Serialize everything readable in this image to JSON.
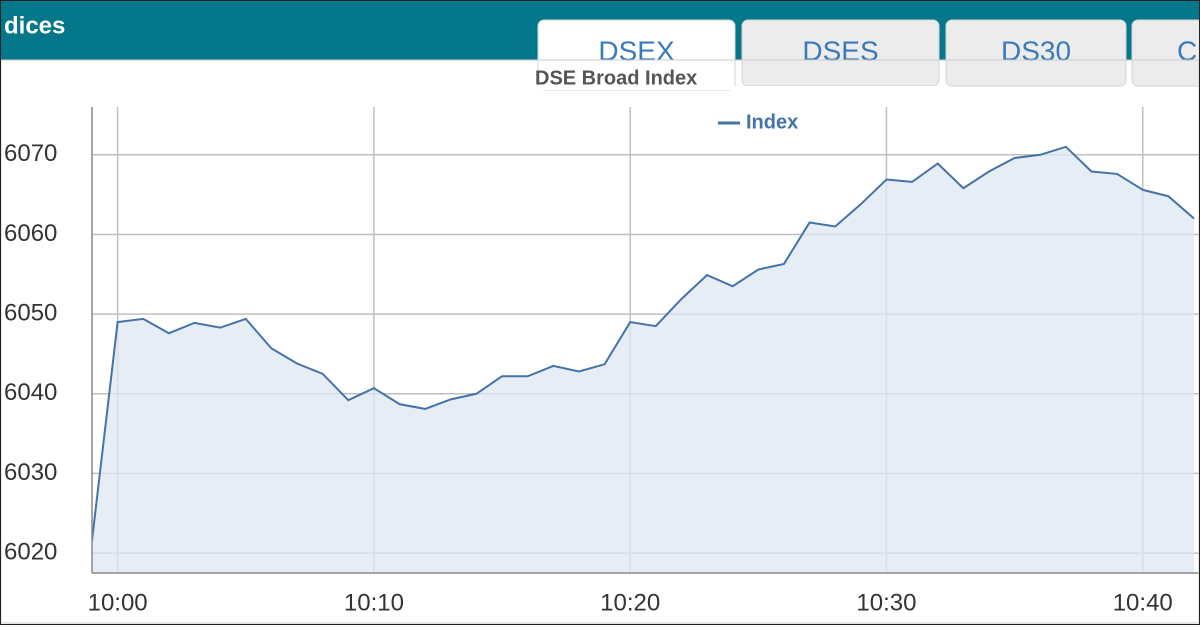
{
  "header": {
    "title": "dices"
  },
  "tabs": [
    "DSEX",
    "DSES",
    "DS30",
    "C"
  ],
  "chart_data": {
    "type": "area",
    "title": "DSE Broad Index",
    "x": [
      "09:59",
      "10:00",
      "10:01",
      "10:02",
      "10:03",
      "10:04",
      "10:05",
      "10:06",
      "10:07",
      "10:08",
      "10:09",
      "10:10",
      "10:11",
      "10:12",
      "10:13",
      "10:14",
      "10:15",
      "10:16",
      "10:17",
      "10:18",
      "10:19",
      "10:20",
      "10:21",
      "10:22",
      "10:23",
      "10:24",
      "10:25",
      "10:26",
      "10:27",
      "10:28",
      "10:29",
      "10:30",
      "10:31",
      "10:32",
      "10:33",
      "10:34",
      "10:35",
      "10:36",
      "10:37",
      "10:38",
      "10:39",
      "10:40",
      "10:41",
      "10:42"
    ],
    "series": [
      {
        "name": "Index",
        "color": "#4473a8",
        "fill": "#dfe7f1",
        "values": [
          6021.6,
          6049,
          6049.4,
          6047.6,
          6048.9,
          6048.3,
          6049.4,
          6045.7,
          6043.8,
          6042.5,
          6039.2,
          6040.7,
          6038.7,
          6038.1,
          6039.3,
          6040,
          6042.2,
          6042.2,
          6043.5,
          6042.8,
          6043.7,
          6049,
          6048.5,
          6051.9,
          6054.9,
          6053.5,
          6055.6,
          6056.3,
          6061.5,
          6061,
          6063.8,
          6066.9,
          6066.6,
          6068.9,
          6065.8,
          6067.9,
          6069.6,
          6070,
          6071,
          6067.9,
          6067.6,
          6065.6,
          6064.8,
          6062
        ]
      }
    ],
    "xlim": [
      "09:59",
      "10:42"
    ],
    "xticks": [
      "10:00",
      "10:10",
      "10:20",
      "10:30",
      "10:40"
    ],
    "ylim": [
      6017.5,
      6076
    ],
    "yticks": [
      6020,
      6030,
      6040,
      6050,
      6060,
      6070
    ],
    "grid": true,
    "legend": "top"
  }
}
